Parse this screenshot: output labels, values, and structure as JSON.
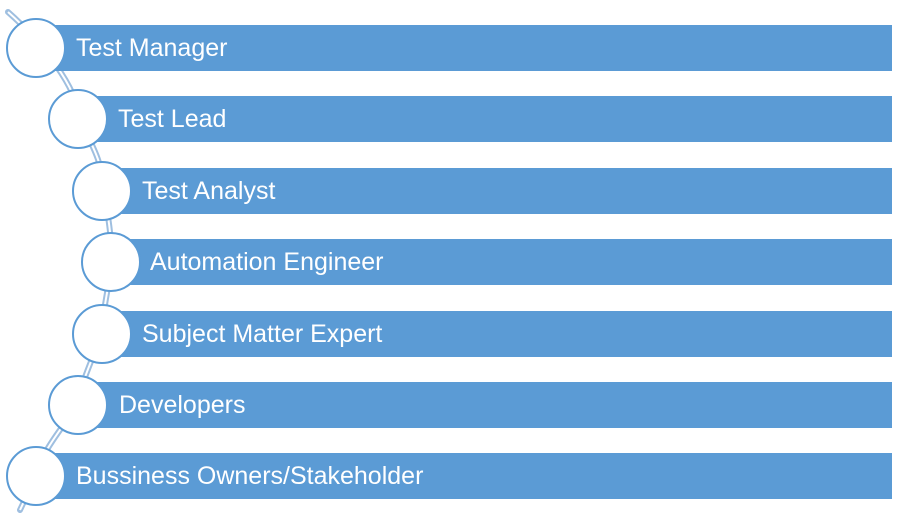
{
  "diagram": {
    "levels": [
      {
        "label": "Test Manager"
      },
      {
        "label": "Test Lead"
      },
      {
        "label": "Test Analyst"
      },
      {
        "label": "Automation Engineer"
      },
      {
        "label": "Subject Matter Expert"
      },
      {
        "label": "Developers"
      },
      {
        "label": "Bussiness Owners/Stakeholder"
      }
    ],
    "colors": {
      "bar": "#5b9bd5",
      "node_border": "#5b9bd5",
      "curve": "#9fbfe0"
    }
  }
}
